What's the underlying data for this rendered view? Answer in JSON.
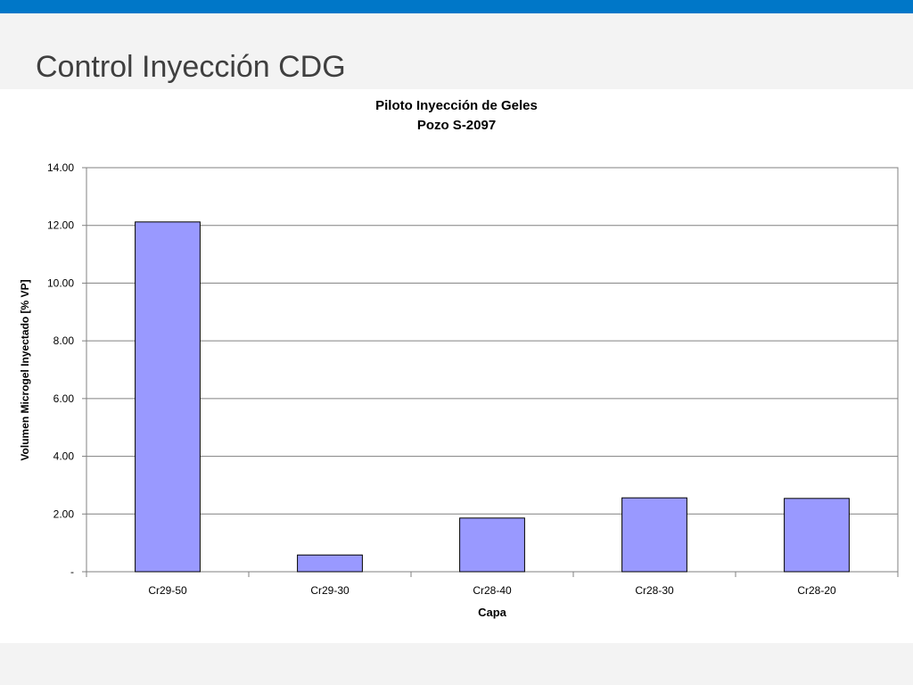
{
  "slide": {
    "title": "Control Inyección CDG",
    "accent_color": "#0077c8",
    "background_color": "#f3f3f3"
  },
  "chart_data": {
    "type": "bar",
    "title": "Piloto Inyección de Geles",
    "subtitle": "Pozo S-2097",
    "xlabel": "Capa",
    "ylabel": "Volumen Microgel Inyectado [% VP]",
    "categories": [
      "Cr29-50",
      "Cr29-30",
      "Cr28-40",
      "Cr28-30",
      "Cr28-20"
    ],
    "values": [
      12.12,
      0.58,
      1.86,
      2.56,
      2.54
    ],
    "ylim": [
      0,
      14
    ],
    "yticks": [
      0,
      2,
      4,
      6,
      8,
      10,
      12,
      14
    ],
    "ytick_labels": [
      "-",
      "2.00",
      "4.00",
      "6.00",
      "8.00",
      "10.00",
      "12.00",
      "14.00"
    ],
    "grid": true,
    "legend": "none",
    "bar_color": "#9999ff",
    "bar_edge_color": "#000000"
  }
}
